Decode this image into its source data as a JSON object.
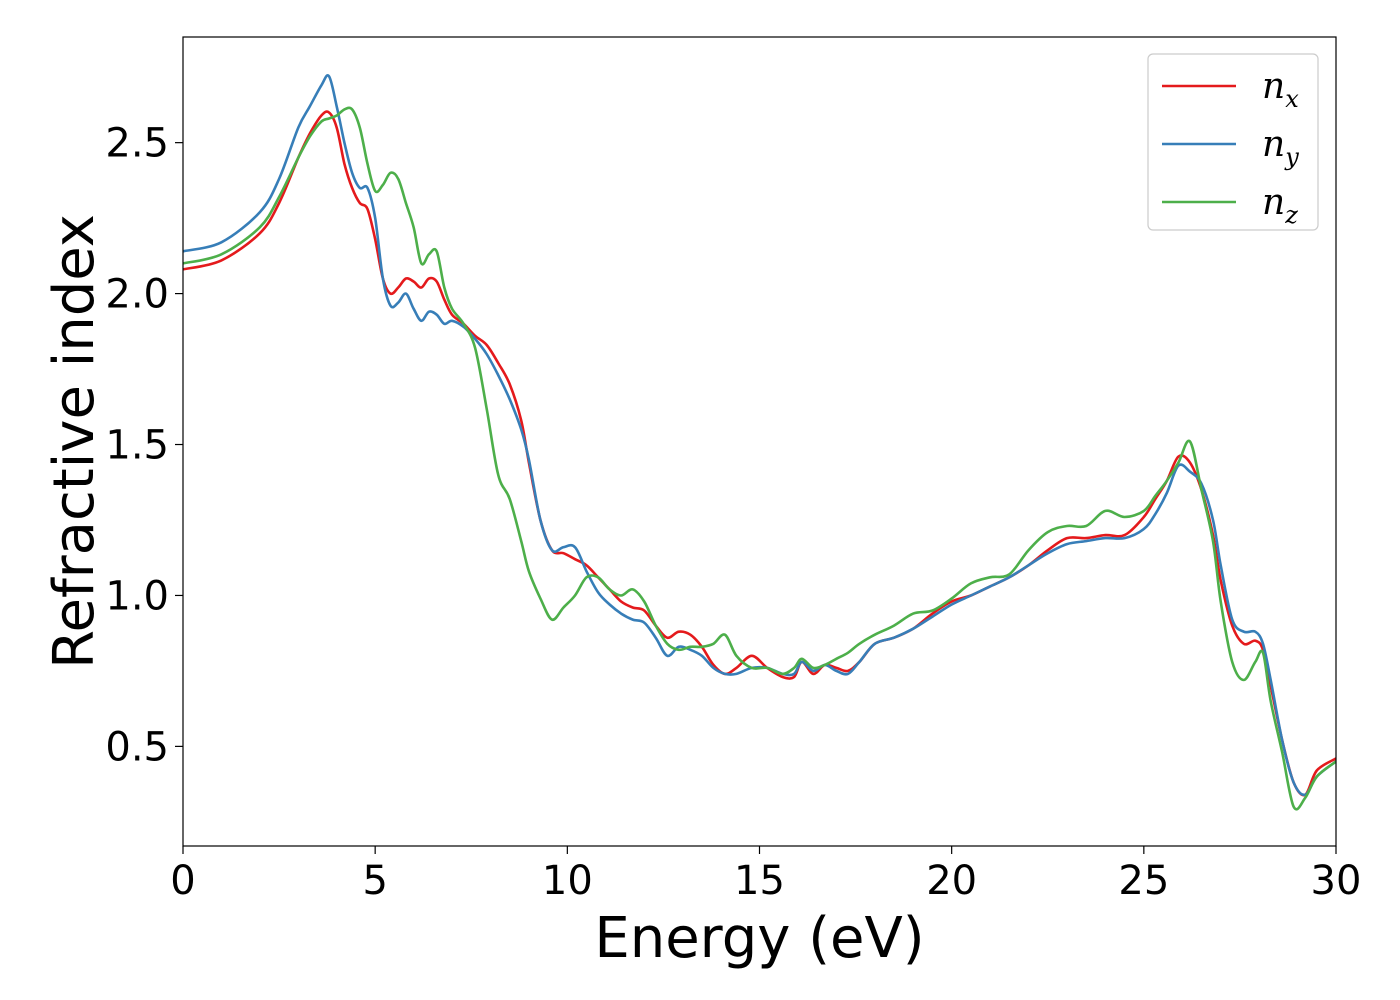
{
  "chart_data": {
    "type": "line",
    "xlabel": "Energy (eV)",
    "ylabel": "Refractive index",
    "xlim": [
      0,
      30
    ],
    "ylim": [
      0.17,
      2.85
    ],
    "xticks": [
      0,
      5,
      10,
      15,
      20,
      25,
      30
    ],
    "yticks": [
      0.5,
      1.0,
      1.5,
      2.0,
      2.5
    ],
    "xtick_labels": [
      "0",
      "5",
      "10",
      "15",
      "20",
      "25",
      "30"
    ],
    "ytick_labels": [
      "0.5",
      "1.0",
      "1.5",
      "2.0",
      "2.5"
    ],
    "grid": false,
    "legend_position": "top-right",
    "series": [
      {
        "name": "n_x",
        "label_base": "n",
        "label_sub": "x",
        "color": "#e41a1c",
        "x": [
          0,
          1,
          2,
          2.5,
          3,
          3.3,
          3.6,
          3.8,
          4.0,
          4.2,
          4.4,
          4.6,
          4.8,
          5.0,
          5.2,
          5.4,
          5.6,
          5.8,
          6.0,
          6.2,
          6.4,
          6.6,
          6.8,
          7.0,
          7.3,
          7.6,
          7.9,
          8.2,
          8.5,
          8.8,
          9.0,
          9.3,
          9.6,
          9.9,
          10.2,
          10.5,
          10.8,
          11.1,
          11.4,
          11.7,
          12.0,
          12.3,
          12.6,
          12.9,
          13.2,
          13.5,
          13.8,
          14.1,
          14.4,
          14.8,
          15.2,
          15.6,
          15.9,
          16.1,
          16.4,
          16.7,
          17.0,
          17.3,
          17.6,
          18.0,
          18.5,
          19.0,
          19.5,
          20.0,
          20.5,
          21.0,
          21.5,
          22.0,
          22.5,
          23.0,
          23.5,
          24.0,
          24.5,
          25.0,
          25.3,
          25.6,
          25.9,
          26.2,
          26.5,
          26.8,
          27.0,
          27.3,
          27.6,
          27.9,
          28.1,
          28.3,
          28.6,
          28.9,
          29.2,
          29.5,
          30.0
        ],
        "y": [
          2.08,
          2.11,
          2.2,
          2.3,
          2.45,
          2.53,
          2.59,
          2.6,
          2.55,
          2.43,
          2.35,
          2.3,
          2.28,
          2.18,
          2.05,
          2.0,
          2.02,
          2.05,
          2.04,
          2.02,
          2.05,
          2.04,
          1.98,
          1.93,
          1.9,
          1.86,
          1.83,
          1.77,
          1.7,
          1.58,
          1.44,
          1.25,
          1.15,
          1.14,
          1.12,
          1.1,
          1.06,
          1.02,
          0.98,
          0.96,
          0.95,
          0.9,
          0.86,
          0.88,
          0.87,
          0.83,
          0.77,
          0.74,
          0.76,
          0.8,
          0.76,
          0.73,
          0.73,
          0.78,
          0.74,
          0.77,
          0.76,
          0.75,
          0.78,
          0.84,
          0.86,
          0.89,
          0.94,
          0.98,
          1.0,
          1.03,
          1.06,
          1.1,
          1.15,
          1.19,
          1.19,
          1.2,
          1.2,
          1.26,
          1.32,
          1.38,
          1.46,
          1.44,
          1.35,
          1.2,
          1.05,
          0.9,
          0.84,
          0.85,
          0.82,
          0.7,
          0.52,
          0.38,
          0.34,
          0.42,
          0.46
        ]
      },
      {
        "name": "n_y",
        "label_base": "n",
        "label_sub": "y",
        "color": "#377eb8",
        "x": [
          0,
          1,
          2,
          2.5,
          3,
          3.3,
          3.6,
          3.8,
          4.0,
          4.2,
          4.4,
          4.6,
          4.8,
          5.0,
          5.2,
          5.4,
          5.6,
          5.8,
          6.0,
          6.2,
          6.4,
          6.6,
          6.8,
          7.0,
          7.3,
          7.6,
          7.9,
          8.2,
          8.5,
          8.8,
          9.0,
          9.3,
          9.6,
          9.9,
          10.2,
          10.5,
          10.8,
          11.1,
          11.4,
          11.7,
          12.0,
          12.3,
          12.6,
          12.9,
          13.2,
          13.5,
          13.8,
          14.1,
          14.4,
          14.8,
          15.2,
          15.6,
          15.9,
          16.1,
          16.4,
          16.7,
          17.0,
          17.3,
          17.6,
          18.0,
          18.5,
          19.0,
          19.5,
          20.0,
          20.5,
          21.0,
          21.5,
          22.0,
          22.5,
          23.0,
          23.5,
          24.0,
          24.5,
          25.0,
          25.3,
          25.6,
          25.9,
          26.2,
          26.5,
          26.8,
          27.0,
          27.3,
          27.6,
          27.9,
          28.1,
          28.3,
          28.6,
          28.9,
          29.2,
          29.5,
          30.0
        ],
        "y": [
          2.14,
          2.17,
          2.27,
          2.38,
          2.55,
          2.62,
          2.69,
          2.72,
          2.62,
          2.5,
          2.4,
          2.35,
          2.35,
          2.25,
          2.05,
          1.96,
          1.97,
          2.0,
          1.95,
          1.91,
          1.94,
          1.93,
          1.9,
          1.91,
          1.89,
          1.85,
          1.8,
          1.73,
          1.65,
          1.55,
          1.45,
          1.25,
          1.15,
          1.16,
          1.16,
          1.08,
          1.01,
          0.97,
          0.94,
          0.92,
          0.91,
          0.86,
          0.8,
          0.83,
          0.82,
          0.8,
          0.76,
          0.74,
          0.74,
          0.76,
          0.76,
          0.74,
          0.74,
          0.78,
          0.75,
          0.77,
          0.75,
          0.74,
          0.78,
          0.84,
          0.86,
          0.89,
          0.93,
          0.97,
          1.0,
          1.03,
          1.06,
          1.1,
          1.14,
          1.17,
          1.18,
          1.19,
          1.19,
          1.22,
          1.27,
          1.34,
          1.43,
          1.41,
          1.37,
          1.25,
          1.1,
          0.92,
          0.88,
          0.88,
          0.84,
          0.72,
          0.52,
          0.38,
          0.34,
          0.4,
          0.45
        ]
      },
      {
        "name": "n_z",
        "label_base": "n",
        "label_sub": "z",
        "color": "#4daf4a",
        "x": [
          0,
          1,
          2,
          2.5,
          3,
          3.3,
          3.6,
          3.8,
          4.0,
          4.2,
          4.4,
          4.6,
          4.8,
          5.0,
          5.2,
          5.4,
          5.6,
          5.8,
          6.0,
          6.2,
          6.4,
          6.6,
          6.8,
          7.0,
          7.3,
          7.6,
          7.9,
          8.2,
          8.5,
          8.8,
          9.0,
          9.3,
          9.6,
          9.9,
          10.2,
          10.5,
          10.8,
          11.1,
          11.4,
          11.7,
          12.0,
          12.3,
          12.6,
          12.9,
          13.2,
          13.5,
          13.8,
          14.1,
          14.4,
          14.8,
          15.2,
          15.6,
          15.9,
          16.1,
          16.4,
          16.7,
          17.0,
          17.3,
          17.6,
          18.0,
          18.5,
          19.0,
          19.5,
          20.0,
          20.5,
          21.0,
          21.5,
          22.0,
          22.5,
          23.0,
          23.5,
          24.0,
          24.5,
          25.0,
          25.3,
          25.6,
          25.9,
          26.2,
          26.5,
          26.8,
          27.0,
          27.3,
          27.6,
          27.9,
          28.1,
          28.3,
          28.6,
          28.9,
          29.2,
          29.5,
          30.0
        ],
        "y": [
          2.1,
          2.13,
          2.22,
          2.32,
          2.45,
          2.52,
          2.57,
          2.58,
          2.59,
          2.61,
          2.61,
          2.55,
          2.43,
          2.34,
          2.36,
          2.4,
          2.38,
          2.3,
          2.22,
          2.1,
          2.13,
          2.14,
          2.02,
          1.95,
          1.9,
          1.82,
          1.62,
          1.4,
          1.32,
          1.18,
          1.08,
          0.99,
          0.92,
          0.96,
          1.0,
          1.06,
          1.06,
          1.02,
          1.0,
          1.02,
          0.98,
          0.9,
          0.84,
          0.82,
          0.83,
          0.83,
          0.84,
          0.87,
          0.8,
          0.76,
          0.76,
          0.74,
          0.76,
          0.79,
          0.76,
          0.77,
          0.79,
          0.81,
          0.84,
          0.87,
          0.9,
          0.94,
          0.95,
          0.99,
          1.04,
          1.06,
          1.07,
          1.15,
          1.21,
          1.23,
          1.23,
          1.28,
          1.26,
          1.28,
          1.33,
          1.38,
          1.44,
          1.51,
          1.35,
          1.18,
          0.98,
          0.78,
          0.72,
          0.78,
          0.81,
          0.65,
          0.48,
          0.3,
          0.33,
          0.4,
          0.45
        ]
      }
    ]
  }
}
